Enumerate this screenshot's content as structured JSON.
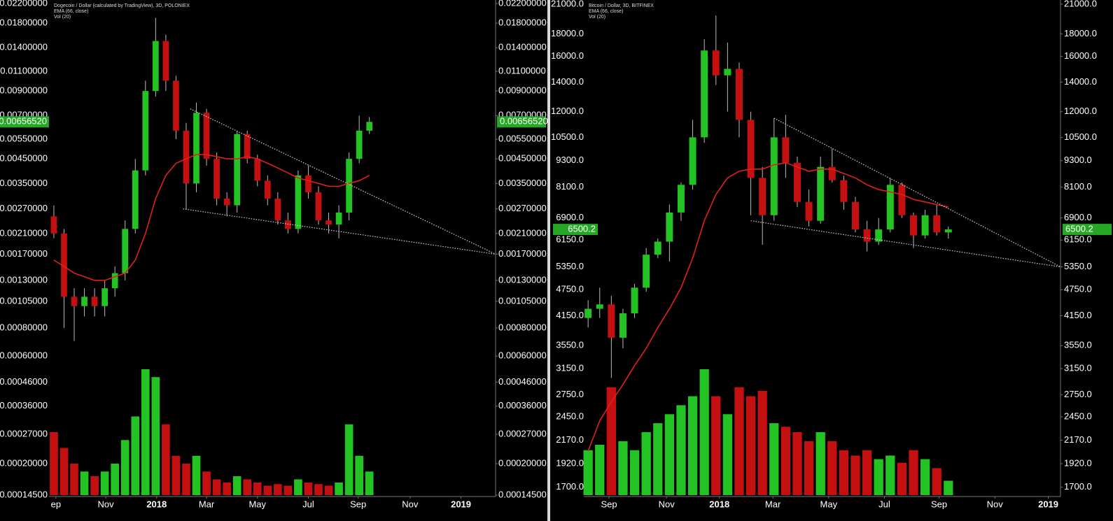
{
  "chart_data": [
    {
      "type": "candlestick",
      "title": "Dogecoin / Dollar (calculated by TradingView), 3D, POLONIEX",
      "volume_name": "Vol (20)",
      "up_color": "#22c322",
      "down_color": "#c41010",
      "open": [
        0.0025,
        0.0021,
        0.0011,
        0.001,
        0.0011,
        0.001,
        0.0012,
        0.0014,
        0.0022,
        0.004,
        0.009,
        0.015,
        0.01,
        0.006,
        0.0035,
        0.0072,
        0.0045,
        0.003,
        0.0028,
        0.0058,
        0.0045,
        0.0036,
        0.003,
        0.0024,
        0.0022,
        0.0038,
        0.0032,
        0.0024,
        0.0023,
        0.0026,
        0.0045,
        0.006
      ],
      "high": [
        0.0028,
        0.0022,
        0.0012,
        0.0012,
        0.0012,
        0.0013,
        0.0015,
        0.0024,
        0.0045,
        0.01,
        0.019,
        0.016,
        0.0105,
        0.0065,
        0.008,
        0.0075,
        0.0048,
        0.0032,
        0.006,
        0.006,
        0.0047,
        0.0038,
        0.0032,
        0.0026,
        0.004,
        0.0042,
        0.0034,
        0.0026,
        0.0028,
        0.0048,
        0.007,
        0.0069
      ],
      "low": [
        0.002,
        0.0008,
        0.0007,
        0.0009,
        0.0009,
        0.0009,
        0.0011,
        0.0013,
        0.0021,
        0.0038,
        0.0085,
        0.009,
        0.0055,
        0.0027,
        0.0032,
        0.0042,
        0.0028,
        0.0025,
        0.0026,
        0.0043,
        0.0034,
        0.0028,
        0.0023,
        0.0021,
        0.0021,
        0.003,
        0.0023,
        0.0021,
        0.002,
        0.0024,
        0.0043,
        0.0058
      ],
      "close": [
        0.0021,
        0.0011,
        0.001,
        0.0011,
        0.001,
        0.0012,
        0.0014,
        0.0022,
        0.004,
        0.009,
        0.015,
        0.01,
        0.006,
        0.0035,
        0.0072,
        0.0045,
        0.003,
        0.0028,
        0.0058,
        0.0045,
        0.0036,
        0.003,
        0.0024,
        0.0022,
        0.0038,
        0.0032,
        0.0024,
        0.0023,
        0.0026,
        0.0045,
        0.006,
        0.0065652
      ],
      "volume": [
        40,
        30,
        20,
        15,
        12,
        15,
        20,
        35,
        50,
        80,
        75,
        45,
        25,
        20,
        25,
        15,
        10,
        8,
        12,
        10,
        8,
        6,
        7,
        6,
        10,
        8,
        7,
        6,
        8,
        45,
        25,
        15
      ],
      "ema": {
        "name": "EMA (66, close)",
        "color": "#e0201c",
        "values": [
          0.0016,
          0.0015,
          0.0014,
          0.00135,
          0.0013,
          0.0013,
          0.00135,
          0.0014,
          0.0016,
          0.0021,
          0.003,
          0.0038,
          0.0043,
          0.0045,
          0.0047,
          0.0047,
          0.0046,
          0.0045,
          0.0045,
          0.0046,
          0.0045,
          0.0043,
          0.0041,
          0.0039,
          0.0037,
          0.0036,
          0.0035,
          0.0034,
          0.0034,
          0.0035,
          0.0036,
          0.0038
        ]
      },
      "trendlines": [
        {
          "x": [
            13.4,
            43.4
          ],
          "y": [
            0.0075,
            0.0017
          ]
        },
        {
          "x": [
            12.7,
            43.4
          ],
          "y": [
            0.0027,
            0.0017
          ]
        }
      ],
      "trendline_color": "#d0d0d0",
      "last_price": {
        "value": 0.0065652,
        "label": "0.00656520"
      },
      "log_scale": true,
      "xlim": [
        -0.34,
        43.4
      ],
      "xticks": [
        {
          "value": 0.2,
          "label": "ep"
        },
        {
          "value": 5.1,
          "label": "Nov"
        },
        {
          "value": 10.1,
          "label": "2018"
        },
        {
          "value": 15,
          "label": "Mar"
        },
        {
          "value": 20,
          "label": "May"
        },
        {
          "value": 25,
          "label": "Jul"
        },
        {
          "value": 29.9,
          "label": "Sep"
        },
        {
          "value": 35,
          "label": "Nov"
        },
        {
          "value": 40,
          "label": "2019"
        }
      ],
      "ylim": [
        0.000145,
        0.022
      ],
      "yticks": [
        {
          "value": 0.022,
          "label": "0.02200000"
        },
        {
          "value": 0.018,
          "label": "0.01800000"
        },
        {
          "value": 0.014,
          "label": "0.01400000"
        },
        {
          "value": 0.011,
          "label": "0.01100000"
        },
        {
          "value": 0.009,
          "label": "0.00900000"
        },
        {
          "value": 0.007,
          "label": "0.00700000"
        },
        {
          "value": 0.0055,
          "label": "0.00550000"
        },
        {
          "value": 0.0045,
          "label": "0.00450000"
        },
        {
          "value": 0.0035,
          "label": "0.00350000"
        },
        {
          "value": 0.0027,
          "label": "0.00270000"
        },
        {
          "value": 0.0021,
          "label": "0.00210000"
        },
        {
          "value": 0.0017,
          "label": "0.00170000"
        },
        {
          "value": 0.0013,
          "label": "0.00130000"
        },
        {
          "value": 0.00105,
          "label": "0.00105000"
        },
        {
          "value": 0.0008,
          "label": "0.00080000"
        },
        {
          "value": 0.0006,
          "label": "0.00060000"
        },
        {
          "value": 0.00046,
          "label": "0.00046000"
        },
        {
          "value": 0.00036,
          "label": "0.00036000"
        },
        {
          "value": 0.00027,
          "label": "0.00027000"
        },
        {
          "value": 0.0002,
          "label": "0.00020000"
        },
        {
          "value": 0.000145,
          "label": "0.00014500"
        }
      ]
    },
    {
      "type": "candlestick",
      "title": "Bitcoin / Dollar, 3D, BITFINEX",
      "volume_name": "Vol (20)",
      "up_color": "#22c322",
      "down_color": "#c41010",
      "open": [
        4100,
        4300,
        4400,
        3700,
        4200,
        4800,
        5700,
        6100,
        7100,
        8200,
        10500,
        16500,
        14500,
        15000,
        11500,
        8500,
        7000,
        10500,
        9200,
        7500,
        6800,
        9000,
        8400,
        7500,
        6500,
        6100,
        6500,
        8200,
        7000,
        6300,
        7000,
        6400
      ],
      "high": [
        4500,
        4800,
        4600,
        4300,
        4900,
        5900,
        6200,
        7400,
        8300,
        11500,
        17500,
        19800,
        17200,
        15500,
        12000,
        9000,
        11600,
        11800,
        9500,
        8000,
        9500,
        9900,
        8600,
        7700,
        6800,
        6900,
        8500,
        8300,
        7100,
        7200,
        7400,
        6600
      ],
      "low": [
        3900,
        4100,
        3000,
        3500,
        4100,
        4700,
        5600,
        5500,
        6800,
        8000,
        10200,
        13800,
        12000,
        10500,
        7000,
        6000,
        6800,
        8500,
        7300,
        6600,
        6700,
        8300,
        7200,
        6400,
        5800,
        6000,
        6400,
        6900,
        5900,
        6200,
        6300,
        6200
      ],
      "close": [
        4300,
        4400,
        3700,
        4200,
        4800,
        5700,
        6100,
        7100,
        8200,
        10500,
        16500,
        14500,
        15000,
        11500,
        8500,
        7000,
        10500,
        9200,
        7500,
        6800,
        9000,
        8400,
        7500,
        6500,
        6100,
        6500,
        8200,
        7000,
        6300,
        7000,
        6400,
        6500.2
      ],
      "volume": [
        25,
        28,
        60,
        30,
        25,
        35,
        40,
        45,
        50,
        55,
        70,
        55,
        45,
        60,
        55,
        58,
        40,
        38,
        35,
        30,
        35,
        30,
        25,
        22,
        25,
        20,
        22,
        18,
        25,
        20,
        15,
        8
      ],
      "ema": {
        "name": "EMA (66, close)",
        "color": "#e0201c",
        "values": [
          2050,
          2400,
          2650,
          2900,
          3200,
          3500,
          3900,
          4300,
          4800,
          5600,
          6800,
          7800,
          8500,
          8800,
          8900,
          8900,
          9100,
          9200,
          9000,
          8800,
          8900,
          8900,
          8700,
          8500,
          8200,
          8000,
          7900,
          7800,
          7600,
          7500,
          7400,
          7300
        ]
      },
      "trendlines": [
        {
          "x": [
            16.0,
            40.65
          ],
          "y": [
            11600,
            5350
          ]
        },
        {
          "x": [
            14.0,
            40.65
          ],
          "y": [
            6800,
            5350
          ]
        }
      ],
      "trendline_color": "#d0d0d0",
      "last_price": 6500.2,
      "log_scale": true,
      "xlim": [
        -0.25,
        40.65
      ],
      "xticks": [
        {
          "value": 1.8,
          "label": "Sep"
        },
        {
          "value": 6.75,
          "label": "Nov"
        },
        {
          "value": 11.3,
          "label": "2018"
        },
        {
          "value": 15.9,
          "label": "Mar"
        },
        {
          "value": 20.7,
          "label": "May"
        },
        {
          "value": 25.5,
          "label": "Jul"
        },
        {
          "value": 30.2,
          "label": "Sep"
        },
        {
          "value": 35.0,
          "label": "Nov"
        },
        {
          "value": 39.6,
          "label": "2019"
        }
      ],
      "ylim": [
        1630,
        21000
      ],
      "yticks": [
        {
          "value": 21000,
          "label": "21000.0"
        },
        {
          "value": 18000,
          "label": "18000.0"
        },
        {
          "value": 16000,
          "label": "16000.0"
        },
        {
          "value": 14000,
          "label": "14000.0"
        },
        {
          "value": 12000,
          "label": "12000.0"
        },
        {
          "value": 10500,
          "label": "10500.0"
        },
        {
          "value": 9300,
          "label": "9300.0"
        },
        {
          "value": 8100,
          "label": "8100.0"
        },
        {
          "value": 6900,
          "label": "6900.0"
        },
        {
          "value": 6150,
          "label": "6150.0"
        },
        {
          "value": 5350,
          "label": "5350.0"
        },
        {
          "value": 4750,
          "label": "4750.0"
        },
        {
          "value": 4150,
          "label": "4150.0"
        },
        {
          "value": 3550,
          "label": "3550.0"
        },
        {
          "value": 3150,
          "label": "3150.0"
        },
        {
          "value": 2750,
          "label": "2750.0"
        },
        {
          "value": 2450,
          "label": "2450.0"
        },
        {
          "value": 2170,
          "label": "2170.0"
        },
        {
          "value": 1920,
          "label": "1920.0"
        },
        {
          "value": 1700,
          "label": "1700.0"
        }
      ]
    }
  ]
}
